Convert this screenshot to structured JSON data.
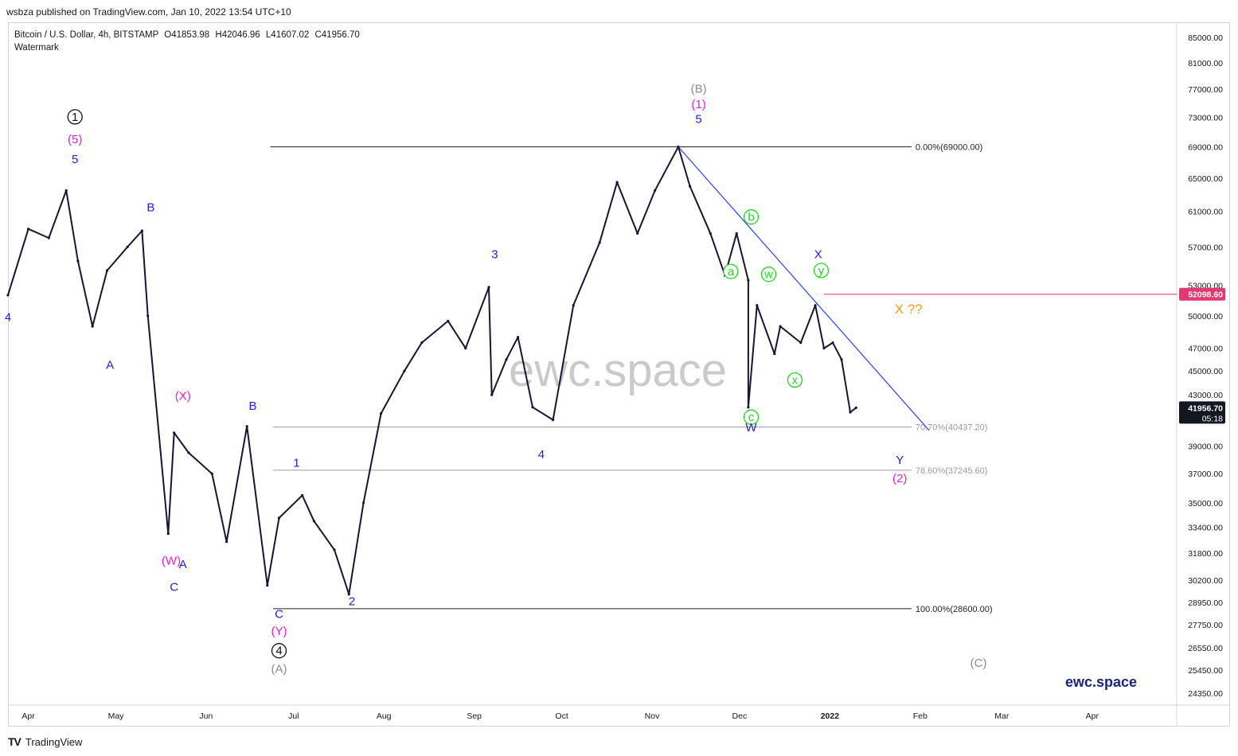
{
  "publisher": {
    "text": "wsbza published on TradingView.com, Jan 10, 2022 13:54 UTC+10"
  },
  "legend": {
    "symbol": "Bitcoin / U.S. Dollar, 4h, BITSTAMP",
    "open": "O41853.98",
    "high": "H42046.96",
    "low": "L41607.02",
    "close": "C41956.70",
    "watermark_label": "Watermark"
  },
  "footer": {
    "brand": "TradingView"
  },
  "colors": {
    "price": "#1b1237",
    "blue_labels": "#1f1fd6",
    "magenta_labels": "#e91ed6",
    "green_labels": "#1edc1e",
    "gray_labels": "#8a8a8a",
    "orange_label": "#f39c12",
    "trendline": "#2a3cff",
    "red_level": "#e53770",
    "brand": "#1a237e"
  },
  "chart_data": {
    "type": "line",
    "title": "Bitcoin / U.S. Dollar, 4h, BITSTAMP",
    "watermark": "ewc.space",
    "brand_label": "ewc.space",
    "x_ticks": [
      "Apr",
      "May",
      "Jun",
      "Jul",
      "Aug",
      "Sep",
      "Oct",
      "Nov",
      "Dec",
      "2022",
      "Feb",
      "Mar",
      "Apr"
    ],
    "y_ticks": [
      "85000.00",
      "81000.00",
      "77000.00",
      "73000.00",
      "69000.00",
      "65000.00",
      "61000.00",
      "57000.00",
      "53000.00",
      "50000.00",
      "47000.00",
      "45000.00",
      "43000.00",
      "39000.00",
      "37000.00",
      "35000.00",
      "33400.00",
      "31800.00",
      "30200.00",
      "28950.00",
      "27750.00",
      "26550.00",
      "25450.00",
      "24350.00"
    ],
    "y_tick_values": [
      85000,
      81000,
      77000,
      73000,
      69000,
      65000,
      61000,
      57000,
      53000,
      50000,
      47000,
      45000,
      43000,
      39000,
      37000,
      35000,
      33400,
      31800,
      30200,
      28950,
      27750,
      26550,
      25450,
      24350
    ],
    "log_scale": true,
    "ylim": [
      23800,
      87500
    ],
    "xlim": [
      "2021-03-25",
      "2022-04-30"
    ],
    "series": [
      {
        "x": [
          "2021-03-25",
          "2021-04-01",
          "2021-04-08",
          "2021-04-14",
          "2021-04-18",
          "2021-04-23",
          "2021-04-28",
          "2021-05-05",
          "2021-05-10",
          "2021-05-12",
          "2021-05-19",
          "2021-05-21",
          "2021-05-26",
          "2021-06-03",
          "2021-06-08",
          "2021-06-15",
          "2021-06-22",
          "2021-06-26",
          "2021-07-04",
          "2021-07-08",
          "2021-07-15",
          "2021-07-20",
          "2021-07-25",
          "2021-07-31",
          "2021-08-08",
          "2021-08-14",
          "2021-08-23",
          "2021-08-29",
          "2021-09-06",
          "2021-09-07",
          "2021-09-12",
          "2021-09-16",
          "2021-09-21",
          "2021-09-28",
          "2021-10-05",
          "2021-10-14",
          "2021-10-20",
          "2021-10-27",
          "2021-11-02",
          "2021-11-10",
          "2021-11-14",
          "2021-11-21",
          "2021-11-26",
          "2021-11-30",
          "2021-12-04",
          "2021-12-04",
          "2021-12-07",
          "2021-12-13",
          "2021-12-15",
          "2021-12-22",
          "2021-12-27",
          "2021-12-30",
          "2022-01-02",
          "2022-01-05",
          "2022-01-08",
          "2022-01-10"
        ],
        "y": [
          52000,
          59000,
          58000,
          63500,
          55500,
          49000,
          54500,
          57000,
          58800,
          50000,
          33000,
          40000,
          38500,
          37000,
          32500,
          40500,
          29900,
          34000,
          35500,
          33800,
          32000,
          29400,
          35000,
          41500,
          45000,
          47500,
          49500,
          47000,
          52800,
          43000,
          46000,
          48000,
          42000,
          41000,
          51000,
          57500,
          64500,
          58500,
          63500,
          69000,
          64000,
          58500,
          54000,
          58500,
          53500,
          42000,
          51000,
          46500,
          49000,
          47500,
          51000,
          47000,
          47500,
          46000,
          41600,
          41956.7
        ]
      }
    ],
    "fib_levels": [
      {
        "label": "0.00%(69000.00)",
        "value": 69000
      },
      {
        "label": "70.70%(40437.20)",
        "value": 40437.2
      },
      {
        "label": "78.60%(37245.60)",
        "value": 37245.6
      },
      {
        "label": "100.00%(28600.00)",
        "value": 28600
      }
    ],
    "red_level": {
      "value": 52098.6,
      "label": "52098.60"
    },
    "last_price": {
      "value": 41956.7,
      "label": "41956.70",
      "countdown": "05:18"
    },
    "trendline": [
      [
        "2021-11-10",
        69000
      ],
      [
        "2022-02-04",
        40200
      ]
    ],
    "annotations": [
      {
        "text": "1",
        "color": "blue",
        "circle": "black",
        "x": "2021-04-17",
        "y": 72500
      },
      {
        "text": "(5)",
        "color": "magenta",
        "x": "2021-04-17",
        "y": 69500
      },
      {
        "text": "5",
        "color": "blue",
        "x": "2021-04-17",
        "y": 66900
      },
      {
        "text": "4",
        "color": "blue",
        "x": "2021-03-25",
        "y": 49500
      },
      {
        "text": "B",
        "color": "blue",
        "x": "2021-05-13",
        "y": 61000
      },
      {
        "text": "A",
        "color": "blue",
        "x": "2021-04-29",
        "y": 45200
      },
      {
        "text": "(X)",
        "color": "magenta",
        "x": "2021-05-24",
        "y": 42600
      },
      {
        "text": "(W)",
        "color": "magenta",
        "x": "2021-05-20",
        "y": 31100
      },
      {
        "text": "A",
        "color": "blue",
        "x": "2021-05-24",
        "y": 30900
      },
      {
        "text": "C",
        "color": "blue",
        "x": "2021-05-21",
        "y": 29600
      },
      {
        "text": "B",
        "color": "blue",
        "x": "2021-06-17",
        "y": 41800
      },
      {
        "text": "C",
        "color": "blue",
        "x": "2021-06-26",
        "y": 28100
      },
      {
        "text": "(Y)",
        "color": "magenta",
        "x": "2021-06-26",
        "y": 27200
      },
      {
        "text": "4",
        "color": "black",
        "circle": "black",
        "x": "2021-06-26",
        "y": 26200
      },
      {
        "text": "(A)",
        "color": "gray",
        "x": "2021-06-26",
        "y": 25300
      },
      {
        "text": "1",
        "color": "blue",
        "x": "2021-07-02",
        "y": 37500
      },
      {
        "text": "2",
        "color": "blue",
        "x": "2021-07-21",
        "y": 28800
      },
      {
        "text": "3",
        "color": "blue",
        "x": "2021-09-08",
        "y": 55800
      },
      {
        "text": "4",
        "color": "blue",
        "x": "2021-09-24",
        "y": 38100
      },
      {
        "text": "(B)",
        "color": "gray",
        "x": "2021-11-17",
        "y": 76500
      },
      {
        "text": "(1)",
        "color": "magenta",
        "x": "2021-11-17",
        "y": 74300
      },
      {
        "text": "5",
        "color": "blue",
        "x": "2021-11-17",
        "y": 72200
      },
      {
        "text": "a",
        "color": "green",
        "circle": "green",
        "x": "2021-11-28",
        "y": 54000
      },
      {
        "text": "b",
        "color": "green",
        "circle": "green",
        "x": "2021-12-05",
        "y": 59900
      },
      {
        "text": "w",
        "color": "green",
        "circle": "green",
        "x": "2021-12-11",
        "y": 53700
      },
      {
        "text": "c",
        "color": "green",
        "circle": "green",
        "x": "2021-12-05",
        "y": 40900
      },
      {
        "text": "W",
        "color": "blue",
        "x": "2021-12-05",
        "y": 40100
      },
      {
        "text": "x",
        "color": "green",
        "circle": "green",
        "x": "2021-12-20",
        "y": 43900
      },
      {
        "text": "X",
        "color": "blue",
        "x": "2021-12-28",
        "y": 55800
      },
      {
        "text": "y",
        "color": "green",
        "circle": "green",
        "x": "2021-12-29",
        "y": 54100
      },
      {
        "text": "X ??",
        "color": "orange",
        "x": "2022-01-28",
        "y": 50200
      },
      {
        "text": "Y",
        "color": "blue",
        "x": "2022-01-25",
        "y": 37700
      },
      {
        "text": "(2)",
        "color": "magenta",
        "x": "2022-01-25",
        "y": 36400
      },
      {
        "text": "(C)",
        "color": "gray",
        "x": "2022-02-21",
        "y": 25600
      }
    ]
  }
}
